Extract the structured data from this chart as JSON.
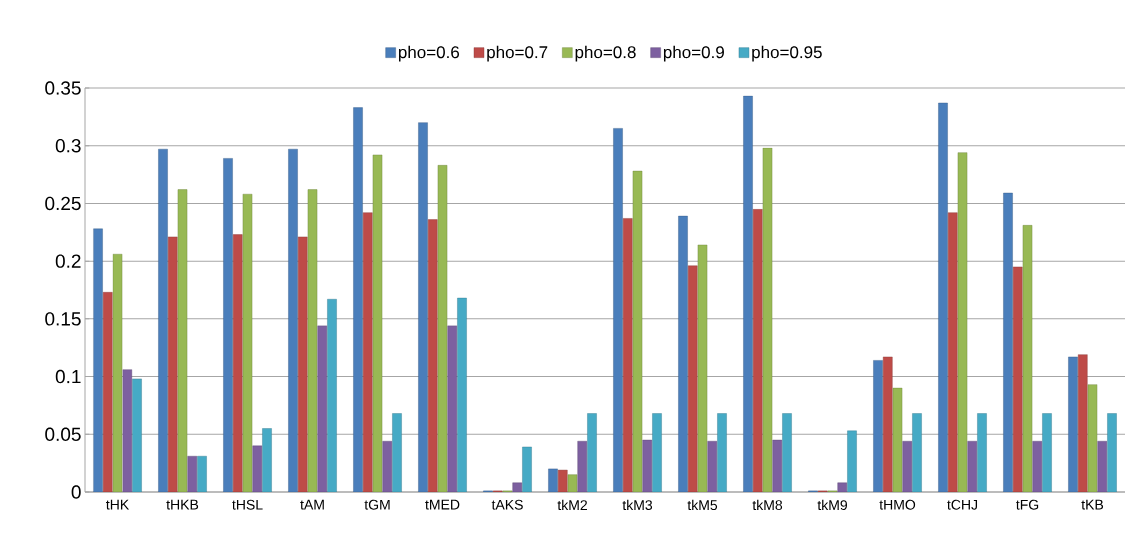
{
  "chart_data": {
    "type": "bar",
    "categories": [
      "tHK",
      "tHKB",
      "tHSL",
      "tAM",
      "tGM",
      "tMED",
      "tAKS",
      "tkM2",
      "tkM3",
      "tkM5",
      "tkM8",
      "tkM9",
      "tHMO",
      "tCHJ",
      "tFG",
      "tKB"
    ],
    "series": [
      {
        "name": "pho=0.6",
        "color": "#4a7ebb",
        "values": [
          0.228,
          0.297,
          0.289,
          0.297,
          0.333,
          0.32,
          0.001,
          0.02,
          0.315,
          0.239,
          0.343,
          0.001,
          0.114,
          0.337,
          0.259,
          0.117
        ]
      },
      {
        "name": "pho=0.7",
        "color": "#be4b48",
        "values": [
          0.173,
          0.221,
          0.223,
          0.221,
          0.242,
          0.236,
          0.001,
          0.019,
          0.237,
          0.196,
          0.245,
          0.001,
          0.117,
          0.242,
          0.195,
          0.119
        ]
      },
      {
        "name": "pho=0.8",
        "color": "#98b954",
        "values": [
          0.206,
          0.262,
          0.258,
          0.262,
          0.292,
          0.283,
          0.001,
          0.015,
          0.278,
          0.214,
          0.298,
          0.001,
          0.09,
          0.294,
          0.231,
          0.093
        ]
      },
      {
        "name": "pho=0.9",
        "color": "#7d60a0",
        "values": [
          0.106,
          0.031,
          0.04,
          0.144,
          0.044,
          0.144,
          0.008,
          0.044,
          0.045,
          0.044,
          0.045,
          0.008,
          0.044,
          0.044,
          0.044,
          0.044
        ]
      },
      {
        "name": "pho=0.95",
        "color": "#46aac5",
        "values": [
          0.098,
          0.031,
          0.055,
          0.167,
          0.068,
          0.168,
          0.039,
          0.068,
          0.068,
          0.068,
          0.068,
          0.053,
          0.068,
          0.068,
          0.068,
          0.068
        ]
      }
    ],
    "ylim": [
      0,
      0.35
    ],
    "yticks": [
      0,
      0.05,
      0.1,
      0.15,
      0.2,
      0.25,
      0.3,
      0.35
    ],
    "grid": "y",
    "legend": "top"
  }
}
